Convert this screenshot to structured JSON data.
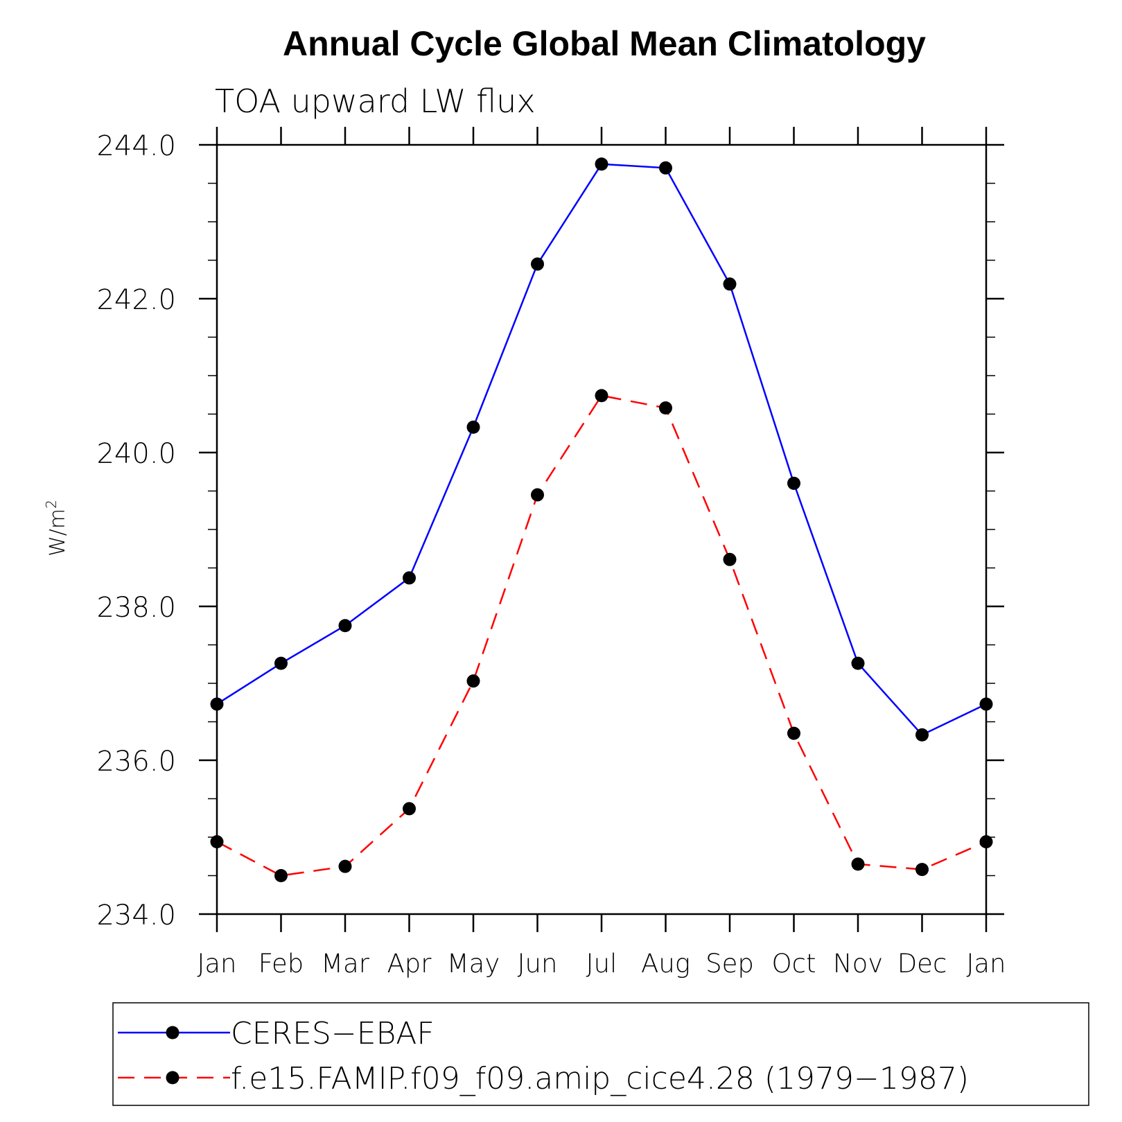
{
  "chart_data": {
    "type": "line",
    "title": "Annual Cycle Global Mean Climatology",
    "subtitle": "TOA upward LW flux",
    "ylabel": "W/m",
    "ylabel_sup": "2",
    "xlabel": "",
    "categories": [
      "Jan",
      "Feb",
      "Mar",
      "Apr",
      "May",
      "Jun",
      "Jul",
      "Aug",
      "Sep",
      "Oct",
      "Nov",
      "Dec",
      "Jan"
    ],
    "ylim": [
      234.0,
      244.0
    ],
    "yticks": [
      234.0,
      236.0,
      238.0,
      240.0,
      242.0,
      244.0
    ],
    "ytick_labels": [
      "234.0",
      "236.0",
      "238.0",
      "240.0",
      "242.0",
      "244.0"
    ],
    "legend_position": "bottom",
    "grid": false,
    "series": [
      {
        "name": "CERES−EBAF",
        "color": "#0000ff",
        "dash": "solid",
        "marker": "circle",
        "values": [
          236.73,
          237.26,
          237.75,
          238.37,
          240.33,
          242.45,
          243.75,
          243.7,
          242.19,
          239.6,
          237.26,
          236.33,
          236.73
        ]
      },
      {
        "name": "f.e15.FAMIP.f09_f09.amip_cice4.28 (1979−1987)",
        "color": "#ff0000",
        "dash": "dashed",
        "marker": "circle",
        "values": [
          234.94,
          234.5,
          234.62,
          235.37,
          237.03,
          239.45,
          240.74,
          240.58,
          238.61,
          236.35,
          234.65,
          234.58,
          234.94
        ]
      }
    ]
  }
}
